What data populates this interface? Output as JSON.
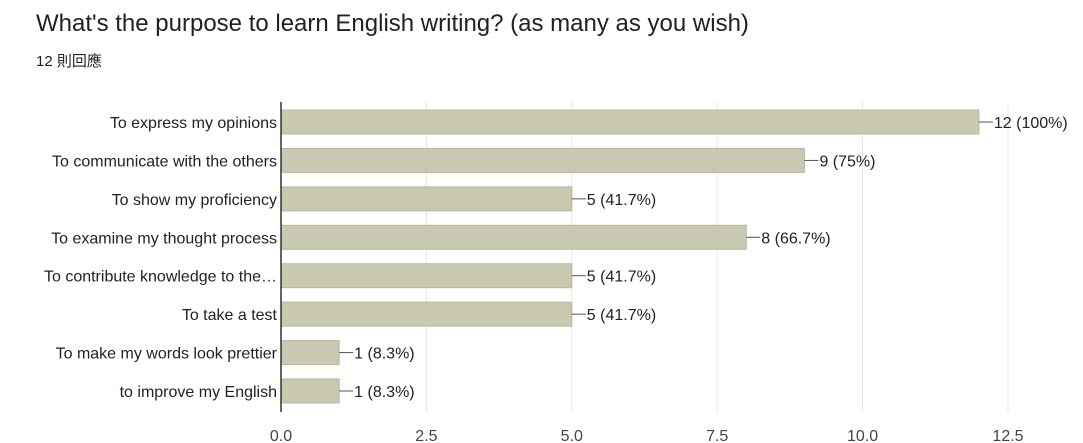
{
  "title": "What's the purpose to learn English writing? (as many as you wish)",
  "response_count": "12 則回應",
  "colors": {
    "bar": "#c9c8b0",
    "bar_stroke": "#b9b89f",
    "axis": "#333333",
    "grid": "#e6e6e6"
  },
  "chart_data": {
    "type": "bar",
    "orientation": "horizontal",
    "categories": [
      "To express my opinions",
      "To communicate with the others",
      "To show my proficiency",
      "To examine my thought process",
      "To contribute knowledge to the…",
      "To take a test",
      "To make my words look prettier",
      "to improve my English"
    ],
    "values": [
      12,
      9,
      5,
      8,
      5,
      5,
      1,
      1
    ],
    "data_labels": [
      "12 (100%)",
      "9 (75%)",
      "5 (41.7%)",
      "8 (66.7%)",
      "5 (41.7%)",
      "5 (41.7%)",
      "1 (8.3%)",
      "1 (8.3%)"
    ],
    "xlim": [
      0,
      12.5
    ],
    "xticks": [
      0,
      2.5,
      5,
      7.5,
      10,
      12.5
    ],
    "xtick_labels": [
      "0.0",
      "2.5",
      "5.0",
      "7.5",
      "10.0",
      "12.5"
    ],
    "grid": true
  }
}
